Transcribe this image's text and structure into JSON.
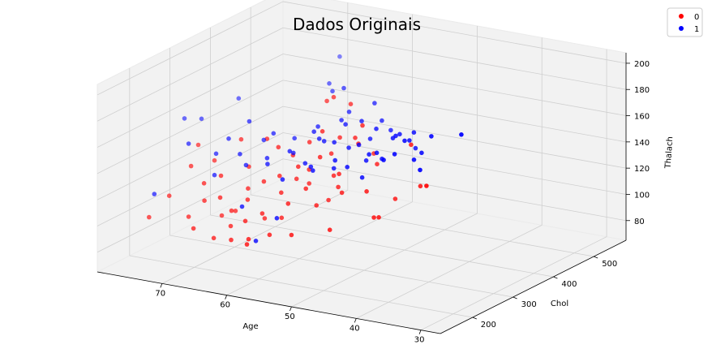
{
  "chart_data": {
    "type": "scatter",
    "title": "Dados Originais",
    "xlabel": "Age",
    "ylabel": "Chol",
    "zlabel": "Thalach",
    "xlim": [
      27,
      80
    ],
    "ylim": [
      120,
      580
    ],
    "zlim": [
      65,
      208
    ],
    "xticks": [
      30,
      40,
      50,
      60,
      70
    ],
    "yticks": [
      200,
      300,
      400,
      500
    ],
    "zticks": [
      80,
      100,
      120,
      140,
      160,
      180,
      200
    ],
    "grid": true,
    "legend_position": "top-right",
    "series": [
      {
        "name": "0",
        "color": "#ff0000",
        "points": [
          [
            35,
            214,
            156
          ],
          [
            41,
            295,
            138
          ],
          [
            44,
            320,
            163
          ],
          [
            46,
            313,
            121
          ],
          [
            48,
            274,
            131
          ],
          [
            50,
            332,
            141
          ],
          [
            51,
            340,
            147
          ],
          [
            52,
            277,
            126
          ],
          [
            52,
            318,
            157
          ],
          [
            53,
            286,
            138
          ],
          [
            53,
            344,
            166
          ],
          [
            54,
            300,
            125
          ],
          [
            54,
            342,
            156
          ],
          [
            55,
            305,
            132
          ],
          [
            55,
            262,
            116
          ],
          [
            56,
            287,
            148
          ],
          [
            56,
            308,
            112
          ],
          [
            57,
            331,
            143
          ],
          [
            57,
            268,
            126
          ],
          [
            58,
            292,
            136
          ],
          [
            58,
            325,
            160
          ],
          [
            58,
            240,
            118
          ],
          [
            59,
            281,
            139
          ],
          [
            59,
            308,
            122
          ],
          [
            60,
            256,
            103
          ],
          [
            60,
            293,
            127
          ],
          [
            60,
            325,
            150
          ],
          [
            61,
            271,
            119
          ],
          [
            61,
            300,
            143
          ],
          [
            62,
            240,
            107
          ],
          [
            62,
            283,
            129
          ],
          [
            63,
            262,
            99
          ],
          [
            63,
            296,
            148
          ],
          [
            64,
            230,
            101
          ],
          [
            64,
            276,
            124
          ],
          [
            65,
            252,
            113
          ],
          [
            65,
            300,
            152
          ],
          [
            66,
            226,
            96
          ],
          [
            66,
            269,
            118
          ],
          [
            67,
            244,
            104
          ],
          [
            67,
            287,
            131
          ],
          [
            68,
            232,
            115
          ],
          [
            68,
            270,
            99
          ],
          [
            69,
            250,
            128
          ],
          [
            70,
            225,
            112
          ],
          [
            70,
            268,
            94
          ],
          [
            71,
            240,
            122
          ],
          [
            72,
            218,
            99
          ],
          [
            74,
            256,
            130
          ],
          [
            76,
            234,
            109
          ],
          [
            77,
            200,
            97
          ],
          [
            62,
            400,
            168
          ],
          [
            58,
            395,
            170
          ],
          [
            46,
            260,
            115
          ],
          [
            44,
            240,
            120
          ],
          [
            50,
            215,
            109
          ],
          [
            55,
            200,
            103
          ],
          [
            59,
            210,
            98
          ],
          [
            61,
            190,
            96
          ],
          [
            64,
            195,
            92
          ],
          [
            67,
            200,
            90
          ],
          [
            70,
            198,
            95
          ],
          [
            60,
            170,
            96
          ],
          [
            57,
            352,
            152
          ],
          [
            60,
            385,
            175
          ],
          [
            69,
            300,
            148
          ],
          [
            72,
            282,
            132
          ],
          [
            75,
            290,
            140
          ]
        ]
      },
      {
        "name": "1",
        "color": "#0000ff",
        "points": [
          [
            29,
            204,
            202
          ],
          [
            34,
            182,
            174
          ],
          [
            35,
            226,
            192
          ],
          [
            37,
            215,
            174
          ],
          [
            38,
            250,
            173
          ],
          [
            39,
            199,
            179
          ],
          [
            40,
            240,
            182
          ],
          [
            41,
            204,
            172
          ],
          [
            41,
            268,
            177
          ],
          [
            42,
            295,
            178
          ],
          [
            43,
            266,
            179
          ],
          [
            43,
            315,
            162
          ],
          [
            44,
            235,
            170
          ],
          [
            44,
            275,
            175
          ],
          [
            45,
            264,
            160
          ],
          [
            45,
            308,
            172
          ],
          [
            46,
            231,
            150
          ],
          [
            46,
            248,
            165
          ],
          [
            47,
            257,
            158
          ],
          [
            48,
            298,
            175
          ],
          [
            48,
            226,
            157
          ],
          [
            49,
            271,
            166
          ],
          [
            50,
            228,
            160
          ],
          [
            50,
            315,
            163
          ],
          [
            51,
            278,
            161
          ],
          [
            51,
            241,
            151
          ],
          [
            52,
            326,
            173
          ],
          [
            52,
            205,
            154
          ],
          [
            53,
            274,
            164
          ],
          [
            54,
            318,
            170
          ],
          [
            54,
            232,
            151
          ],
          [
            55,
            281,
            162
          ],
          [
            56,
            340,
            168
          ],
          [
            56,
            250,
            149
          ],
          [
            57,
            301,
            159
          ],
          [
            57,
            210,
            142
          ],
          [
            58,
            304,
            163
          ],
          [
            59,
            260,
            154
          ],
          [
            59,
            330,
            162
          ],
          [
            60,
            285,
            148
          ],
          [
            61,
            237,
            146
          ],
          [
            62,
            320,
            152
          ],
          [
            62,
            190,
            120
          ],
          [
            63,
            268,
            144
          ],
          [
            64,
            300,
            157
          ],
          [
            65,
            248,
            140
          ],
          [
            66,
            308,
            149
          ],
          [
            67,
            265,
            144
          ],
          [
            68,
            304,
            162
          ],
          [
            69,
            234,
            131
          ],
          [
            70,
            285,
            150
          ],
          [
            71,
            270,
            140
          ],
          [
            74,
            250,
            148
          ],
          [
            76,
            197,
            116
          ],
          [
            51,
            360,
            169
          ],
          [
            54,
            390,
            175
          ],
          [
            49,
            350,
            165
          ],
          [
            57,
            375,
            168
          ],
          [
            60,
            410,
            178
          ],
          [
            63,
            430,
            170
          ],
          [
            66,
            470,
            167
          ],
          [
            70,
            560,
            170
          ],
          [
            75,
            390,
            160
          ],
          [
            77,
            330,
            152
          ],
          [
            79,
            320,
            152
          ],
          [
            56,
            180,
            118
          ],
          [
            58,
            160,
            102
          ]
        ]
      }
    ]
  }
}
